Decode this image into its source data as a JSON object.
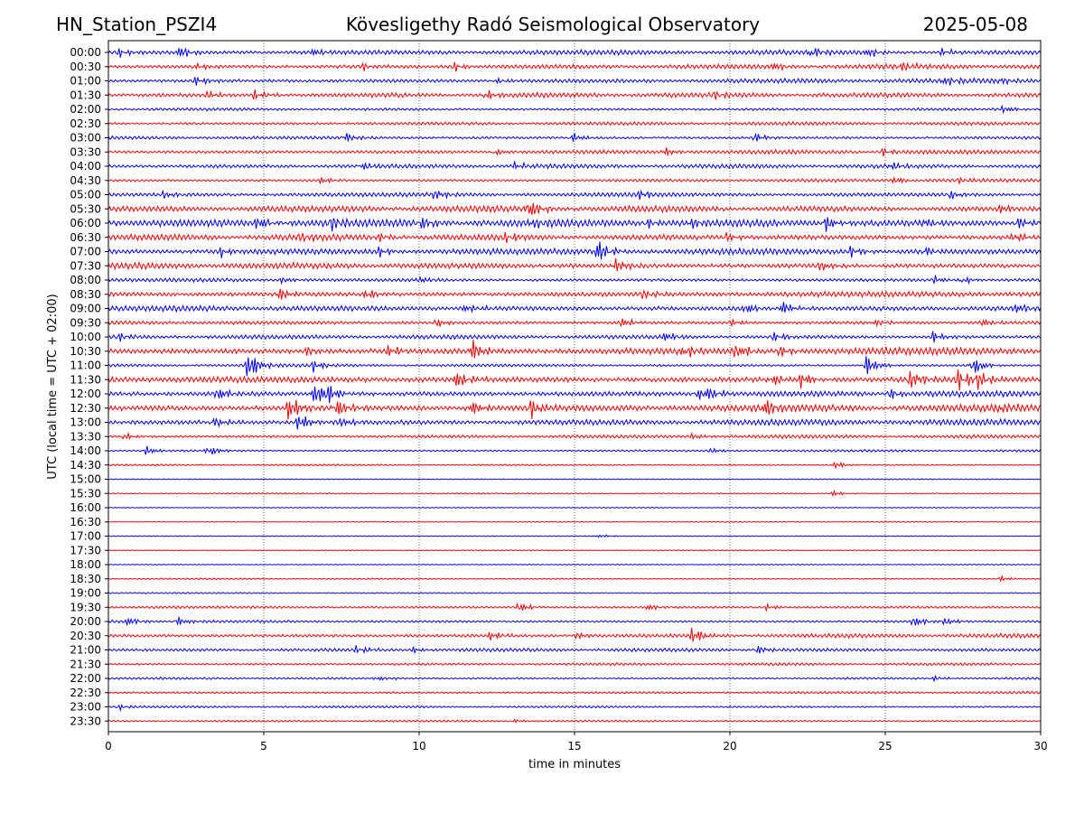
{
  "header": {
    "station": "HN_Station_PSZI4",
    "observatory": "Kövesligethy Radó Seismological Observatory",
    "date": "2025-05-08"
  },
  "chart_data": {
    "type": "line",
    "subtype": "helicorder",
    "title": "Kövesligethy Radó Seismological Observatory",
    "xlabel": "time in minutes",
    "ylabel": "UTC (local time = UTC + 02:00)",
    "xlim": [
      0,
      30
    ],
    "x_ticks": [
      0,
      5,
      10,
      15,
      20,
      25,
      30
    ],
    "x_tick_labels": [
      "0",
      "5",
      "10",
      "15",
      "20",
      "25",
      "30"
    ],
    "grid": "vertical dotted lines at 5-minute intervals",
    "series_colors": [
      "#0000ff",
      "#ff0000"
    ],
    "rows": [
      {
        "label": "00:00",
        "amp": 2.5,
        "events": [
          {
            "t": 0.3,
            "a": 5
          },
          {
            "t": 2.3,
            "a": 6
          },
          {
            "t": 6.6,
            "a": 4
          },
          {
            "t": 22.6,
            "a": 6
          },
          {
            "t": 24.4,
            "a": 5
          },
          {
            "t": 26.8,
            "a": 4
          }
        ]
      },
      {
        "label": "00:30",
        "amp": 2.5,
        "events": [
          {
            "t": 2.9,
            "a": 4
          },
          {
            "t": 8.1,
            "a": 4
          },
          {
            "t": 11.1,
            "a": 5
          },
          {
            "t": 21.4,
            "a": 4
          },
          {
            "t": 25.5,
            "a": 4
          }
        ]
      },
      {
        "label": "01:00",
        "amp": 2.5,
        "events": [
          {
            "t": 2.8,
            "a": 5
          },
          {
            "t": 12.4,
            "a": 4
          },
          {
            "t": 26.9,
            "a": 5
          },
          {
            "t": 28.6,
            "a": 4
          }
        ]
      },
      {
        "label": "01:30",
        "amp": 2.5,
        "events": [
          {
            "t": 3.2,
            "a": 4
          },
          {
            "t": 4.7,
            "a": 6
          },
          {
            "t": 12.1,
            "a": 5
          },
          {
            "t": 19.5,
            "a": 4
          }
        ]
      },
      {
        "label": "02:00",
        "amp": 1.8,
        "events": [
          {
            "t": 28.8,
            "a": 4
          }
        ]
      },
      {
        "label": "02:30",
        "amp": 1.8,
        "events": []
      },
      {
        "label": "03:00",
        "amp": 1.8,
        "events": [
          {
            "t": 7.6,
            "a": 5
          },
          {
            "t": 14.9,
            "a": 5
          },
          {
            "t": 20.8,
            "a": 5
          }
        ]
      },
      {
        "label": "03:30",
        "amp": 2.2,
        "events": [
          {
            "t": 12.4,
            "a": 4
          },
          {
            "t": 17.9,
            "a": 4
          },
          {
            "t": 24.9,
            "a": 4
          }
        ]
      },
      {
        "label": "04:00",
        "amp": 2.2,
        "events": [
          {
            "t": 8.1,
            "a": 5
          },
          {
            "t": 13.1,
            "a": 4
          },
          {
            "t": 25.2,
            "a": 4
          }
        ]
      },
      {
        "label": "04:30",
        "amp": 1.8,
        "events": [
          {
            "t": 6.8,
            "a": 4
          },
          {
            "t": 25.3,
            "a": 4
          },
          {
            "t": 27.3,
            "a": 3
          }
        ]
      },
      {
        "label": "05:00",
        "amp": 2.2,
        "events": [
          {
            "t": 1.8,
            "a": 4
          },
          {
            "t": 10.5,
            "a": 6
          },
          {
            "t": 17.1,
            "a": 4
          },
          {
            "t": 27.1,
            "a": 4
          }
        ]
      },
      {
        "label": "05:30",
        "amp": 3.2,
        "events": [
          {
            "t": 13.5,
            "a": 11
          },
          {
            "t": 28.7,
            "a": 4
          }
        ]
      },
      {
        "label": "06:00",
        "amp": 4.0,
        "events": [
          {
            "t": 4.8,
            "a": 8
          },
          {
            "t": 7.2,
            "a": 6
          },
          {
            "t": 10.0,
            "a": 8
          },
          {
            "t": 13.6,
            "a": 5
          },
          {
            "t": 17.3,
            "a": 5
          },
          {
            "t": 18.7,
            "a": 5
          },
          {
            "t": 23.1,
            "a": 8
          },
          {
            "t": 26.2,
            "a": 5
          },
          {
            "t": 29.3,
            "a": 6
          }
        ]
      },
      {
        "label": "06:30",
        "amp": 3.2,
        "events": [
          {
            "t": 6.2,
            "a": 4
          },
          {
            "t": 8.6,
            "a": 5
          },
          {
            "t": 12.8,
            "a": 5
          },
          {
            "t": 19.9,
            "a": 5
          },
          {
            "t": 29.1,
            "a": 5
          }
        ]
      },
      {
        "label": "07:00",
        "amp": 3.2,
        "events": [
          {
            "t": 3.6,
            "a": 5
          },
          {
            "t": 8.7,
            "a": 5
          },
          {
            "t": 15.7,
            "a": 14
          },
          {
            "t": 23.9,
            "a": 5
          },
          {
            "t": 26.3,
            "a": 4
          }
        ]
      },
      {
        "label": "07:30",
        "amp": 3.2,
        "events": [
          {
            "t": 16.3,
            "a": 7
          },
          {
            "t": 22.9,
            "a": 6
          }
        ]
      },
      {
        "label": "08:00",
        "amp": 2.2,
        "events": [
          {
            "t": 5.6,
            "a": 4
          },
          {
            "t": 10.0,
            "a": 4
          },
          {
            "t": 26.6,
            "a": 4
          },
          {
            "t": 27.5,
            "a": 4
          }
        ]
      },
      {
        "label": "08:30",
        "amp": 3.2,
        "events": [
          {
            "t": 5.5,
            "a": 6
          },
          {
            "t": 8.3,
            "a": 6
          },
          {
            "t": 17.2,
            "a": 4
          }
        ]
      },
      {
        "label": "09:00",
        "amp": 3.2,
        "events": [
          {
            "t": 11.5,
            "a": 5
          },
          {
            "t": 20.5,
            "a": 6
          },
          {
            "t": 21.7,
            "a": 7
          },
          {
            "t": 29.2,
            "a": 5
          }
        ]
      },
      {
        "label": "09:30",
        "amp": 2.2,
        "events": [
          {
            "t": 10.5,
            "a": 5
          },
          {
            "t": 16.5,
            "a": 6
          },
          {
            "t": 20.0,
            "a": 4
          },
          {
            "t": 24.6,
            "a": 4
          },
          {
            "t": 28.1,
            "a": 5
          }
        ]
      },
      {
        "label": "10:00",
        "amp": 2.2,
        "events": [
          {
            "t": 0.3,
            "a": 4
          },
          {
            "t": 17.9,
            "a": 5
          },
          {
            "t": 21.4,
            "a": 6
          },
          {
            "t": 26.5,
            "a": 6
          }
        ]
      },
      {
        "label": "10:30",
        "amp": 3.8,
        "events": [
          {
            "t": 11.7,
            "a": 12
          },
          {
            "t": 9.0,
            "a": 6
          },
          {
            "t": 18.5,
            "a": 6
          },
          {
            "t": 20.2,
            "a": 9
          },
          {
            "t": 21.6,
            "a": 6
          },
          {
            "t": 6.4,
            "a": 5
          }
        ]
      },
      {
        "label": "11:00",
        "amp": 1.6,
        "events": [
          {
            "t": 4.5,
            "a": 16
          },
          {
            "t": 6.6,
            "a": 6
          },
          {
            "t": 24.4,
            "a": 11
          },
          {
            "t": 27.8,
            "a": 10
          }
        ]
      },
      {
        "label": "11:30",
        "amp": 3.8,
        "events": [
          {
            "t": 11.2,
            "a": 9
          },
          {
            "t": 21.3,
            "a": 7
          },
          {
            "t": 22.3,
            "a": 8
          },
          {
            "t": 25.8,
            "a": 10
          },
          {
            "t": 27.3,
            "a": 12
          },
          {
            "t": 28.0,
            "a": 8
          }
        ]
      },
      {
        "label": "12:00",
        "amp": 3.2,
        "events": [
          {
            "t": 3.5,
            "a": 8
          },
          {
            "t": 6.6,
            "a": 13
          },
          {
            "t": 7.0,
            "a": 9
          },
          {
            "t": 18.9,
            "a": 7
          },
          {
            "t": 19.3,
            "a": 6
          },
          {
            "t": 25.1,
            "a": 6
          }
        ]
      },
      {
        "label": "12:30",
        "amp": 3.8,
        "events": [
          {
            "t": 5.8,
            "a": 14
          },
          {
            "t": 7.3,
            "a": 12
          },
          {
            "t": 11.7,
            "a": 7
          },
          {
            "t": 13.6,
            "a": 9
          },
          {
            "t": 21.1,
            "a": 10
          },
          {
            "t": 28.6,
            "a": 6
          }
        ]
      },
      {
        "label": "13:00",
        "amp": 3.2,
        "events": [
          {
            "t": 3.4,
            "a": 5
          },
          {
            "t": 6.1,
            "a": 10
          },
          {
            "t": 7.5,
            "a": 5
          }
        ]
      },
      {
        "label": "13:30",
        "amp": 1.8,
        "events": [
          {
            "t": 0.5,
            "a": 4
          },
          {
            "t": 18.8,
            "a": 3
          }
        ]
      },
      {
        "label": "14:00",
        "amp": 1.4,
        "events": [
          {
            "t": 1.2,
            "a": 4
          },
          {
            "t": 3.2,
            "a": 6
          },
          {
            "t": 19.4,
            "a": 3
          }
        ]
      },
      {
        "label": "14:30",
        "amp": 0.8,
        "events": [
          {
            "t": 23.4,
            "a": 4
          }
        ]
      },
      {
        "label": "15:00",
        "amp": 0.6,
        "events": []
      },
      {
        "label": "15:30",
        "amp": 0.6,
        "events": [
          {
            "t": 23.3,
            "a": 3
          }
        ]
      },
      {
        "label": "16:00",
        "amp": 0.5,
        "events": []
      },
      {
        "label": "16:30",
        "amp": 0.5,
        "events": []
      },
      {
        "label": "17:00",
        "amp": 0.5,
        "events": [
          {
            "t": 15.8,
            "a": 2
          }
        ]
      },
      {
        "label": "17:30",
        "amp": 0.5,
        "events": []
      },
      {
        "label": "18:00",
        "amp": 0.6,
        "events": []
      },
      {
        "label": "18:30",
        "amp": 0.8,
        "events": [
          {
            "t": 28.7,
            "a": 3
          }
        ]
      },
      {
        "label": "19:00",
        "amp": 0.8,
        "events": []
      },
      {
        "label": "19:30",
        "amp": 1.6,
        "events": [
          {
            "t": 13.2,
            "a": 5
          },
          {
            "t": 17.3,
            "a": 4
          },
          {
            "t": 21.2,
            "a": 3
          }
        ]
      },
      {
        "label": "20:00",
        "amp": 1.6,
        "events": [
          {
            "t": 0.6,
            "a": 4
          },
          {
            "t": 2.2,
            "a": 5
          },
          {
            "t": 25.9,
            "a": 6
          },
          {
            "t": 26.9,
            "a": 4
          }
        ]
      },
      {
        "label": "20:30",
        "amp": 2.2,
        "events": [
          {
            "t": 12.3,
            "a": 5
          },
          {
            "t": 15.1,
            "a": 4
          },
          {
            "t": 18.8,
            "a": 9
          }
        ]
      },
      {
        "label": "21:00",
        "amp": 1.8,
        "events": [
          {
            "t": 8.0,
            "a": 4
          },
          {
            "t": 9.8,
            "a": 3
          },
          {
            "t": 20.9,
            "a": 4
          }
        ]
      },
      {
        "label": "21:30",
        "amp": 1.4,
        "events": []
      },
      {
        "label": "22:00",
        "amp": 1.4,
        "events": [
          {
            "t": 8.6,
            "a": 3
          },
          {
            "t": 26.5,
            "a": 3
          }
        ]
      },
      {
        "label": "22:30",
        "amp": 1.4,
        "events": []
      },
      {
        "label": "23:00",
        "amp": 1.2,
        "events": [
          {
            "t": 0.3,
            "a": 3
          }
        ]
      },
      {
        "label": "23:30",
        "amp": 1.0,
        "events": [
          {
            "t": 13.1,
            "a": 2
          }
        ]
      }
    ]
  }
}
